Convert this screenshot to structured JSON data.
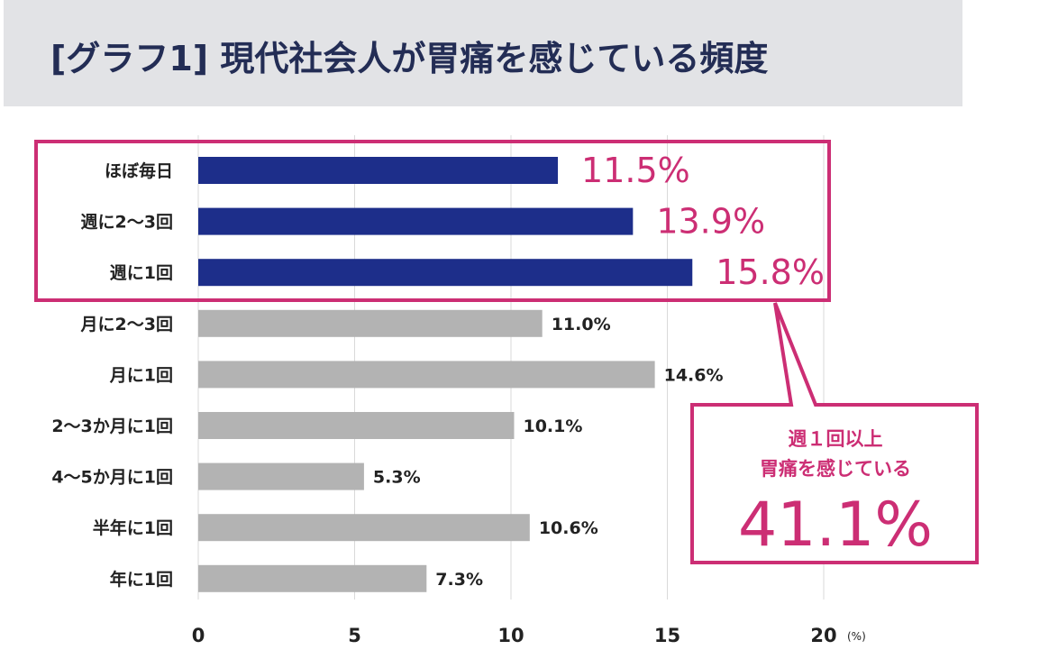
{
  "title": "[グラフ1] 現代社会人が胃痛を感じている頻度",
  "colors": {
    "title_bg": "#e2e3e6",
    "title_text": "#232d55",
    "highlight_bar": "#1d2e8a",
    "normal_bar": "#b3b3b3",
    "accent": "#cc2e74",
    "grid": "#d9d9d9"
  },
  "chart_data": {
    "type": "bar",
    "orientation": "horizontal",
    "title": "[グラフ1] 現代社会人が胃痛を感じている頻度",
    "categories": [
      "ほぼ毎日",
      "週に2〜3回",
      "週に1回",
      "月に2〜3回",
      "月に1回",
      "2〜3か月に1回",
      "4〜5か月に1回",
      "半年に1回",
      "年に1回"
    ],
    "values": [
      11.5,
      13.9,
      15.8,
      11.0,
      14.6,
      10.1,
      5.3,
      10.6,
      7.3
    ],
    "value_labels": [
      "11.5%",
      "13.9%",
      "15.8%",
      "11.0%",
      "14.6%",
      "10.1%",
      "5.3%",
      "10.6%",
      "7.3%"
    ],
    "highlighted": [
      true,
      true,
      true,
      false,
      false,
      false,
      false,
      false,
      false
    ],
    "xlim": [
      0,
      20
    ],
    "xticks": [
      0,
      5,
      10,
      15,
      20
    ],
    "xtick_labels": [
      "0",
      "5",
      "10",
      "15",
      "20"
    ],
    "unit": "(%)",
    "grid": true,
    "annotation": {
      "line1": "週１回以上",
      "line2": "胃痛を感じている",
      "value": "41.1%"
    }
  }
}
